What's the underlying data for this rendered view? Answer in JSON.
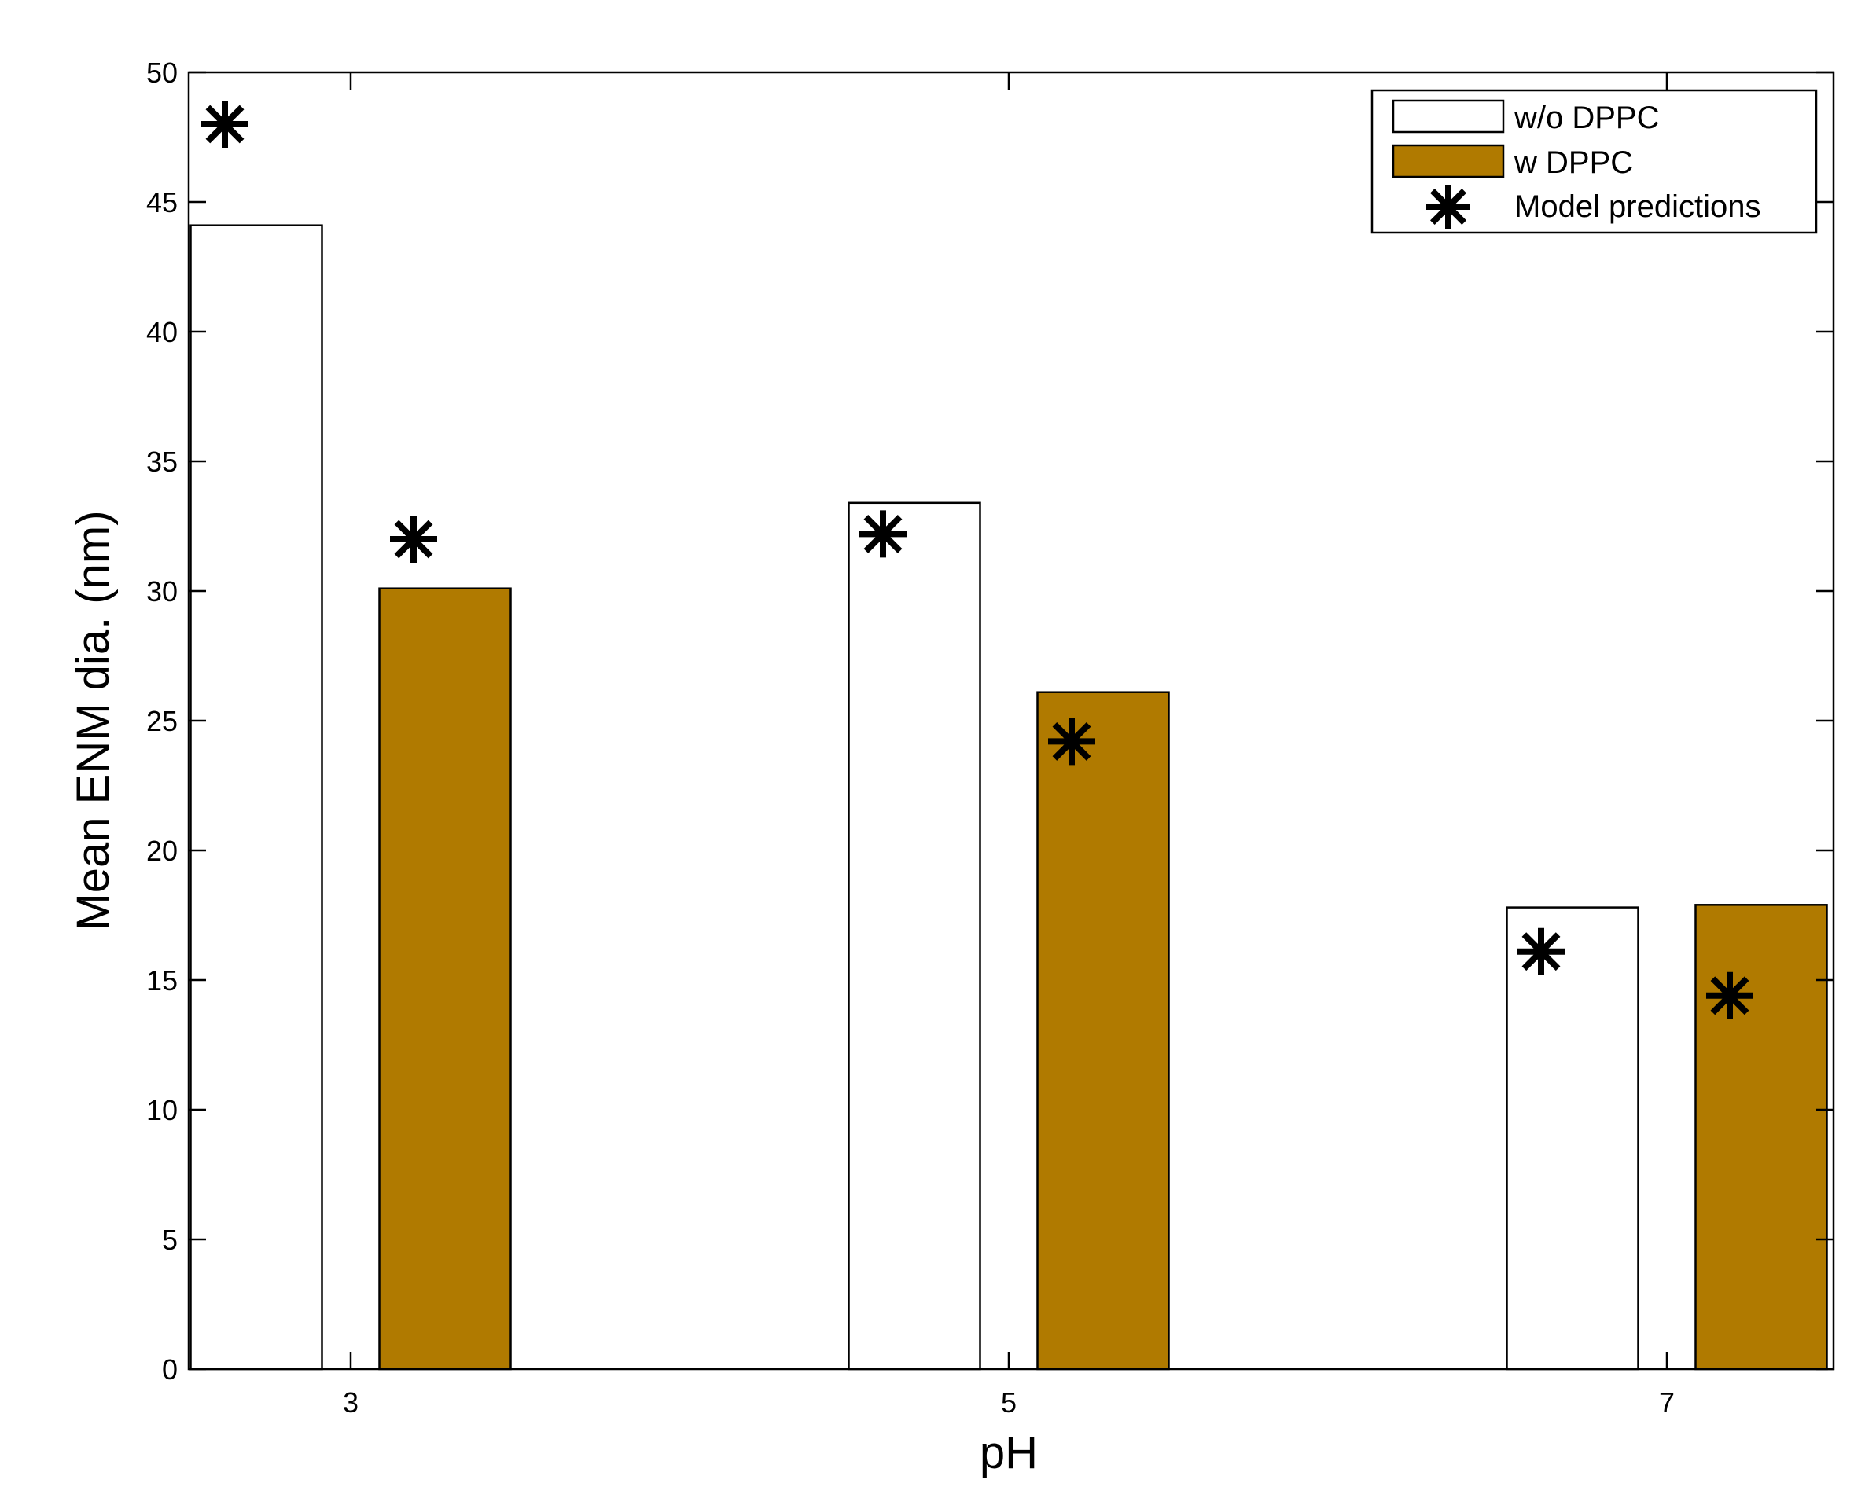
{
  "chart_data": {
    "type": "bar",
    "xlabel": "pH",
    "ylabel": "Mean ENM dia. (nm)",
    "categories": [
      "3",
      "5",
      "7"
    ],
    "ylim": [
      0,
      50
    ],
    "yticks": [
      0,
      5,
      10,
      15,
      20,
      25,
      30,
      35,
      40,
      45,
      50
    ],
    "grid": false,
    "legend_position": "top-right",
    "series": [
      {
        "name": "w/o DPPC",
        "type": "bar",
        "color": "#ffffff",
        "values": [
          44.1,
          33.4,
          17.8
        ]
      },
      {
        "name": "w DPPC",
        "type": "bar",
        "color": "#b07a00",
        "values": [
          30.1,
          26.1,
          17.9
        ]
      }
    ],
    "model": {
      "name": "Model predictions",
      "marker": "asterisk",
      "color": "#000000",
      "values_wo": [
        48.0,
        32.2,
        16.1
      ],
      "values_w": [
        32.0,
        24.2,
        14.4
      ]
    }
  }
}
